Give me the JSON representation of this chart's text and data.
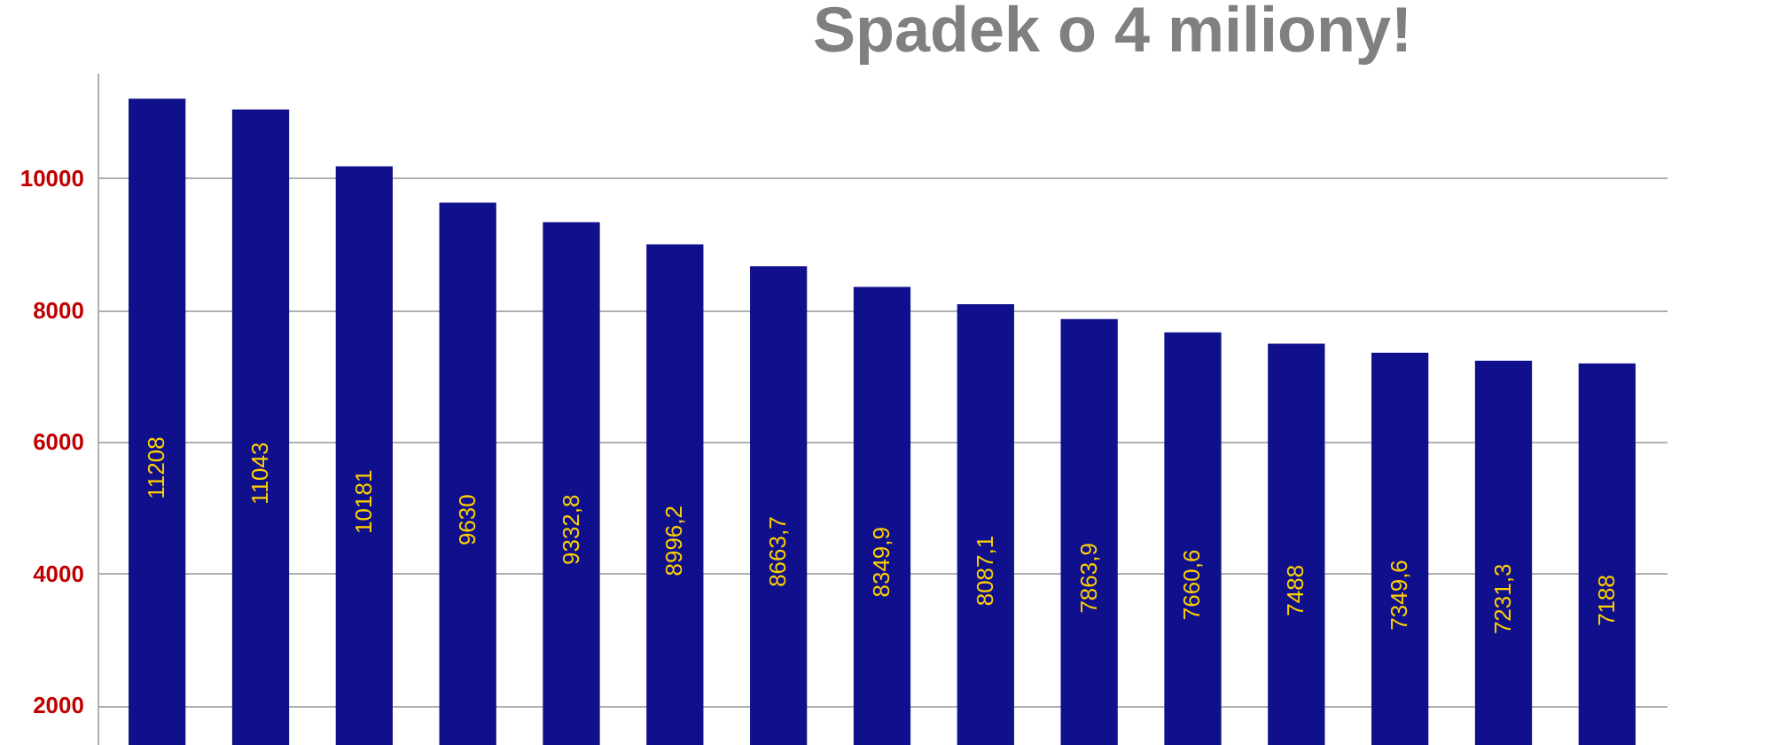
{
  "chart_data": {
    "type": "bar",
    "title": "Spadek o 4 miliony!",
    "categories": [
      null,
      null,
      null,
      null,
      null,
      null,
      null,
      null,
      null,
      null,
      null,
      null,
      null,
      null,
      null
    ],
    "values": [
      11208,
      11043,
      10181,
      9630,
      9332.8,
      8996.2,
      8663.7,
      8349.9,
      8087.1,
      7863.9,
      7660.6,
      7488,
      7349.6,
      7231.3,
      7188
    ],
    "value_labels": [
      "11208",
      "11043",
      "10181",
      "9630",
      "9332,8",
      "8996,2",
      "8663,7",
      "8349,9",
      "8087,1",
      "7863,9",
      "7660,6",
      "7488",
      "7349,6",
      "7231,3",
      "7188"
    ],
    "color": "#10108c",
    "ylim": [
      1400,
      11600
    ],
    "yticks": [
      2000,
      4000,
      6000,
      8000,
      10000
    ],
    "grid": "y",
    "tick_labels": "y"
  }
}
